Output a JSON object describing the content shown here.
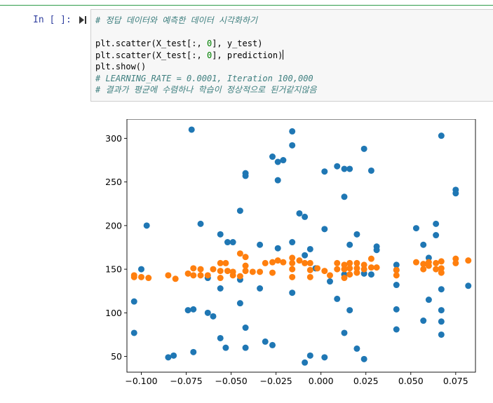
{
  "cell": {
    "prompt": "In [ ]:",
    "code_lines": [
      {
        "parts": [
          {
            "t": "# 정답 데이터와 예측한 데이터 시각화하기",
            "c": "cm"
          }
        ]
      },
      {
        "parts": [
          {
            "t": "",
            "c": ""
          }
        ]
      },
      {
        "parts": [
          {
            "t": "plt.scatter(X_test[:, ",
            "c": ""
          },
          {
            "t": "0",
            "c": "num"
          },
          {
            "t": "], y_test)",
            "c": ""
          }
        ]
      },
      {
        "parts": [
          {
            "t": "plt.scatter(X_test[:, ",
            "c": ""
          },
          {
            "t": "0",
            "c": "num"
          },
          {
            "t": "], prediction)",
            "c": ""
          }
        ],
        "cursor": true
      },
      {
        "parts": [
          {
            "t": "plt.show()",
            "c": ""
          }
        ]
      },
      {
        "parts": [
          {
            "t": "# LEARNING_RATE = 0.0001, Iteration 100,000",
            "c": "cm"
          }
        ]
      },
      {
        "parts": [
          {
            "t": "# 결과가 평균에 수렴하나 학습이 정상적으로 된거같지않음",
            "c": "cm"
          }
        ]
      }
    ]
  },
  "chart_data": {
    "type": "scatter",
    "xlim": [
      -0.108,
      0.086
    ],
    "ylim": [
      32,
      322
    ],
    "xticks": [
      -0.1,
      -0.075,
      -0.05,
      -0.025,
      0.0,
      0.025,
      0.05,
      0.075
    ],
    "xtick_labels": [
      "−0.100",
      "−0.075",
      "−0.050",
      "−0.025",
      "0.000",
      "0.025",
      "0.050",
      "0.075"
    ],
    "yticks": [
      50,
      100,
      150,
      200,
      250,
      300
    ],
    "ytick_labels": [
      "50",
      "100",
      "150",
      "200",
      "250",
      "300"
    ],
    "series": [
      {
        "color": "#1f77b4",
        "points": [
          [
            -0.072,
            310
          ],
          [
            -0.016,
            308
          ],
          [
            -0.016,
            292
          ],
          [
            -0.027,
            279
          ],
          [
            -0.024,
            273
          ],
          [
            -0.021,
            275
          ],
          [
            -0.042,
            260
          ],
          [
            -0.042,
            257
          ],
          [
            -0.024,
            252
          ],
          [
            0.024,
            288
          ],
          [
            0.009,
            268
          ],
          [
            0.013,
            265
          ],
          [
            0.016,
            265
          ],
          [
            0.028,
            263
          ],
          [
            0.002,
            262
          ],
          [
            0.013,
            233
          ],
          [
            0.067,
            303
          ],
          [
            0.075,
            241
          ],
          [
            0.075,
            237
          ],
          [
            -0.097,
            200
          ],
          [
            -0.067,
            202
          ],
          [
            -0.045,
            217
          ],
          [
            -0.012,
            214
          ],
          [
            -0.009,
            210
          ],
          [
            0.002,
            196
          ],
          [
            0.02,
            190
          ],
          [
            -0.056,
            190
          ],
          [
            -0.052,
            181
          ],
          [
            -0.049,
            181
          ],
          [
            -0.034,
            178
          ],
          [
            -0.024,
            174
          ],
          [
            -0.016,
            181
          ],
          [
            -0.006,
            173
          ],
          [
            0.016,
            178
          ],
          [
            0.031,
            176
          ],
          [
            0.031,
            172
          ],
          [
            0.053,
            197
          ],
          [
            0.064,
            202
          ],
          [
            0.064,
            189
          ],
          [
            0.057,
            178
          ],
          [
            0.06,
            163
          ],
          [
            -0.1,
            150
          ],
          [
            -0.045,
            138
          ],
          [
            -0.063,
            140
          ],
          [
            -0.009,
            166
          ],
          [
            -0.003,
            151
          ],
          [
            0.005,
            136
          ],
          [
            0.013,
            144
          ],
          [
            0.024,
            145
          ],
          [
            0.028,
            144
          ],
          [
            0.042,
            155
          ],
          [
            0.042,
            149
          ],
          [
            -0.056,
            128
          ],
          [
            -0.034,
            128
          ],
          [
            -0.016,
            123
          ],
          [
            0.042,
            132
          ],
          [
            0.067,
            127
          ],
          [
            0.082,
            131
          ],
          [
            -0.104,
            113
          ],
          [
            -0.045,
            111
          ],
          [
            -0.074,
            103
          ],
          [
            -0.071,
            104
          ],
          [
            -0.063,
            100
          ],
          [
            -0.06,
            96
          ],
          [
            0.009,
            116
          ],
          [
            0.016,
            103
          ],
          [
            0.042,
            104
          ],
          [
            0.06,
            115
          ],
          [
            0.067,
            103
          ],
          [
            0.067,
            90
          ],
          [
            0.057,
            91
          ],
          [
            -0.104,
            77
          ],
          [
            -0.042,
            83
          ],
          [
            -0.056,
            71
          ],
          [
            -0.053,
            60
          ],
          [
            -0.042,
            60
          ],
          [
            -0.031,
            67
          ],
          [
            -0.027,
            63
          ],
          [
            0.013,
            77
          ],
          [
            0.042,
            81
          ],
          [
            0.067,
            75
          ],
          [
            -0.085,
            49
          ],
          [
            -0.082,
            51
          ],
          [
            -0.071,
            55
          ],
          [
            -0.009,
            43
          ],
          [
            -0.006,
            51
          ],
          [
            0.002,
            49
          ],
          [
            0.02,
            59
          ],
          [
            0.024,
            47
          ]
        ]
      },
      {
        "color": "#ff7f0e",
        "points": [
          [
            -0.104,
            143
          ],
          [
            -0.104,
            141
          ],
          [
            -0.1,
            141
          ],
          [
            -0.096,
            140
          ],
          [
            -0.085,
            143
          ],
          [
            -0.081,
            139
          ],
          [
            -0.074,
            145
          ],
          [
            -0.071,
            151
          ],
          [
            -0.071,
            143
          ],
          [
            -0.067,
            150
          ],
          [
            -0.067,
            143
          ],
          [
            -0.063,
            143
          ],
          [
            -0.06,
            150
          ],
          [
            -0.056,
            157
          ],
          [
            -0.056,
            148
          ],
          [
            -0.056,
            140
          ],
          [
            -0.053,
            157
          ],
          [
            -0.052,
            148
          ],
          [
            -0.049,
            147
          ],
          [
            -0.049,
            143
          ],
          [
            -0.045,
            168
          ],
          [
            -0.045,
            142
          ],
          [
            -0.042,
            164
          ],
          [
            -0.042,
            154
          ],
          [
            -0.042,
            148
          ],
          [
            -0.038,
            147
          ],
          [
            -0.034,
            147
          ],
          [
            -0.031,
            157
          ],
          [
            -0.027,
            158
          ],
          [
            -0.027,
            146
          ],
          [
            -0.024,
            160
          ],
          [
            -0.021,
            158
          ],
          [
            -0.016,
            163
          ],
          [
            -0.016,
            157
          ],
          [
            -0.016,
            150
          ],
          [
            -0.016,
            141
          ],
          [
            -0.012,
            160
          ],
          [
            -0.009,
            157
          ],
          [
            -0.006,
            157
          ],
          [
            -0.006,
            149
          ],
          [
            -0.006,
            141
          ],
          [
            -0.002,
            151
          ],
          [
            0.002,
            148
          ],
          [
            0.005,
            143
          ],
          [
            0.009,
            157
          ],
          [
            0.009,
            150
          ],
          [
            0.013,
            155
          ],
          [
            0.013,
            150
          ],
          [
            0.013,
            140
          ],
          [
            0.016,
            157
          ],
          [
            0.016,
            151
          ],
          [
            0.016,
            144
          ],
          [
            0.02,
            157
          ],
          [
            0.02,
            151
          ],
          [
            0.02,
            146
          ],
          [
            0.024,
            155
          ],
          [
            0.024,
            150
          ],
          [
            0.028,
            162
          ],
          [
            0.028,
            152
          ],
          [
            0.031,
            152
          ],
          [
            0.042,
            149
          ],
          [
            0.042,
            143
          ],
          [
            0.053,
            158
          ],
          [
            0.057,
            156
          ],
          [
            0.057,
            150
          ],
          [
            0.06,
            158
          ],
          [
            0.06,
            154
          ],
          [
            0.064,
            157
          ],
          [
            0.064,
            150
          ],
          [
            0.067,
            159
          ],
          [
            0.067,
            151
          ],
          [
            0.067,
            146
          ],
          [
            0.075,
            162
          ],
          [
            0.075,
            157
          ],
          [
            0.082,
            160
          ]
        ]
      }
    ]
  }
}
